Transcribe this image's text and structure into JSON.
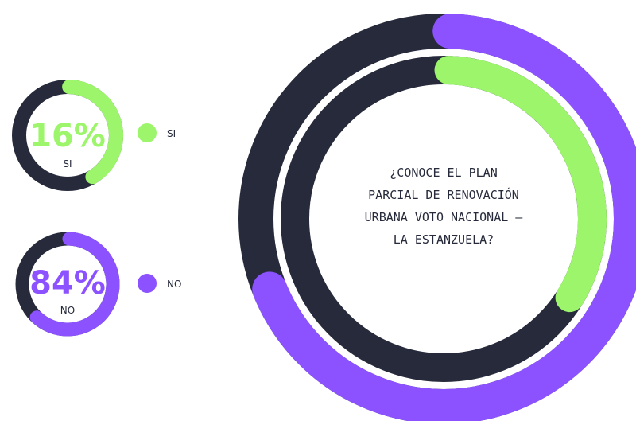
{
  "question": [
    "¿CONOCE EL PLAN",
    "PARCIAL DE RENOVACIÓN",
    "URBANA VOTO NACIONAL –",
    "LA ESTANZUELA?"
  ],
  "answers": [
    {
      "percent": "16%",
      "label": "SI",
      "legend": "SI"
    },
    {
      "percent": "84%",
      "label": "NO",
      "legend": "NO"
    }
  ]
}
